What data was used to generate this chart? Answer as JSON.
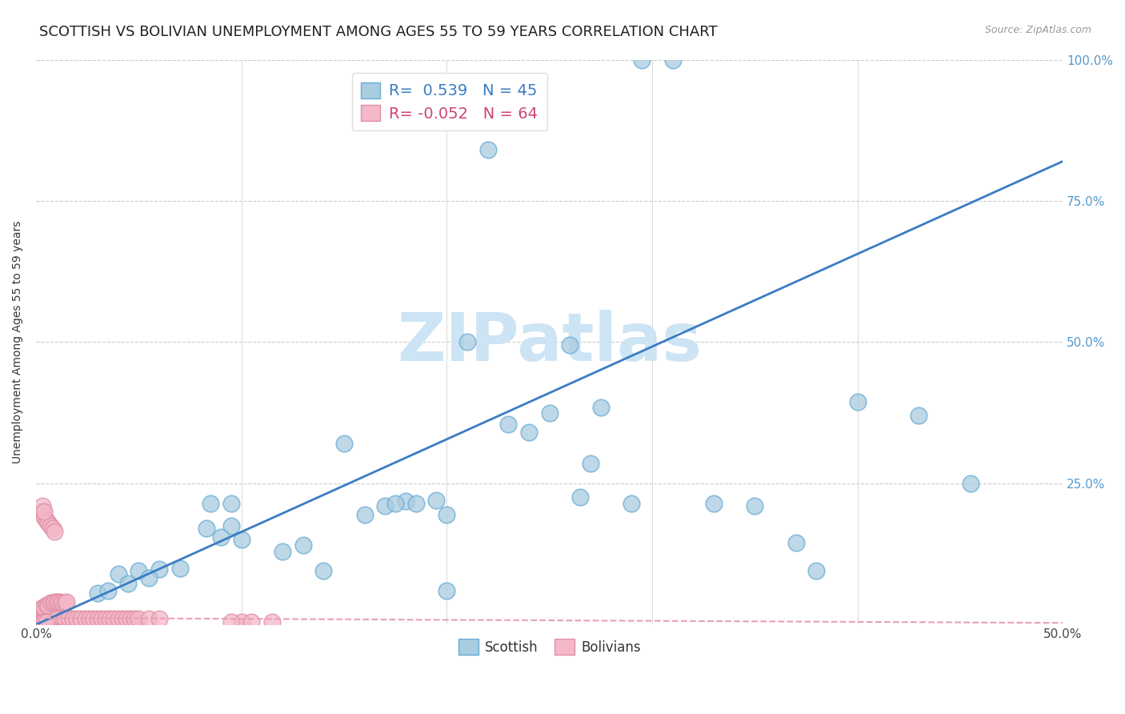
{
  "title": "SCOTTISH VS BOLIVIAN UNEMPLOYMENT AMONG AGES 55 TO 59 YEARS CORRELATION CHART",
  "source": "Source: ZipAtlas.com",
  "ylabel": "Unemployment Among Ages 55 to 59 years",
  "xlim": [
    0,
    0.5
  ],
  "ylim": [
    0,
    1.0
  ],
  "blue_color": "#a8cce0",
  "blue_edge_color": "#6aadd5",
  "pink_color": "#f4b8c8",
  "pink_edge_color": "#e090a8",
  "blue_line_color": "#3a7cc4",
  "pink_line_color": "#e8a0b8",
  "title_fontsize": 13,
  "axis_label_fontsize": 10,
  "tick_fontsize": 11,
  "background_color": "#ffffff",
  "grid_color": "#cccccc",
  "watermark": "ZIPatlas",
  "watermark_color": "#cce4f4",
  "blue_R": 0.539,
  "blue_N": 45,
  "pink_R": -0.052,
  "pink_N": 64,
  "blue_trend_x": [
    0.0,
    0.5
  ],
  "blue_trend_y": [
    0.0,
    0.82
  ],
  "pink_trend_x": [
    0.0,
    0.5
  ],
  "pink_trend_y": [
    0.012,
    0.003
  ],
  "blue_points_x": [
    0.295,
    0.31,
    0.22,
    0.21,
    0.26,
    0.275,
    0.23,
    0.24,
    0.15,
    0.16,
    0.17,
    0.083,
    0.095,
    0.07,
    0.06,
    0.05,
    0.04,
    0.03,
    0.035,
    0.045,
    0.055,
    0.12,
    0.13,
    0.14,
    0.18,
    0.195,
    0.2,
    0.25,
    0.265,
    0.27,
    0.35,
    0.4,
    0.43,
    0.455,
    0.33,
    0.38,
    0.2,
    0.085,
    0.095,
    0.175,
    0.185,
    0.09,
    0.1,
    0.29,
    0.37
  ],
  "blue_points_y": [
    1.0,
    1.0,
    0.84,
    0.5,
    0.495,
    0.385,
    0.355,
    0.34,
    0.32,
    0.195,
    0.21,
    0.17,
    0.175,
    0.1,
    0.098,
    0.095,
    0.09,
    0.055,
    0.06,
    0.072,
    0.082,
    0.13,
    0.14,
    0.095,
    0.218,
    0.22,
    0.195,
    0.375,
    0.225,
    0.285,
    0.21,
    0.395,
    0.37,
    0.25,
    0.215,
    0.095,
    0.06,
    0.215,
    0.215,
    0.215,
    0.215,
    0.155,
    0.15,
    0.215,
    0.145
  ],
  "pink_points_x": [
    0.003,
    0.004,
    0.005,
    0.006,
    0.007,
    0.008,
    0.009,
    0.01,
    0.012,
    0.014,
    0.016,
    0.018,
    0.02,
    0.022,
    0.024,
    0.026,
    0.028,
    0.03,
    0.032,
    0.034,
    0.036,
    0.038,
    0.04,
    0.042,
    0.044,
    0.046,
    0.048,
    0.05,
    0.055,
    0.06,
    0.003,
    0.004,
    0.005,
    0.006,
    0.007,
    0.003,
    0.004,
    0.005,
    0.006,
    0.007,
    0.008,
    0.009,
    0.01,
    0.011,
    0.012,
    0.013,
    0.014,
    0.015,
    0.003,
    0.004,
    0.005,
    0.006,
    0.007,
    0.008,
    0.009,
    0.1,
    0.115,
    0.003,
    0.004,
    0.095,
    0.105,
    0.003,
    0.004,
    0.005
  ],
  "pink_points_y": [
    0.01,
    0.01,
    0.012,
    0.012,
    0.013,
    0.015,
    0.015,
    0.015,
    0.015,
    0.012,
    0.012,
    0.01,
    0.01,
    0.01,
    0.01,
    0.01,
    0.01,
    0.01,
    0.01,
    0.01,
    0.01,
    0.01,
    0.01,
    0.01,
    0.01,
    0.01,
    0.01,
    0.01,
    0.01,
    0.01,
    0.02,
    0.02,
    0.025,
    0.025,
    0.025,
    0.03,
    0.03,
    0.035,
    0.035,
    0.038,
    0.038,
    0.04,
    0.04,
    0.04,
    0.04,
    0.038,
    0.038,
    0.04,
    0.2,
    0.19,
    0.185,
    0.18,
    0.175,
    0.17,
    0.165,
    0.005,
    0.005,
    0.21,
    0.2,
    0.005,
    0.005,
    0.005,
    0.005,
    0.005
  ]
}
